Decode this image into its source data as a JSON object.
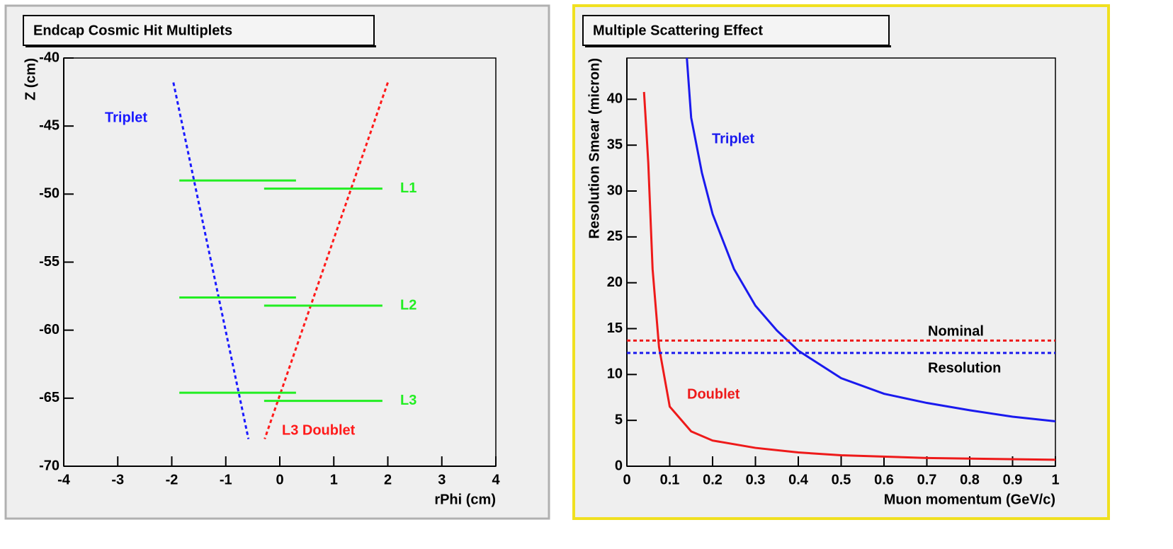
{
  "chart_data": [
    {
      "type": "line",
      "title": "Endcap Cosmic Hit Multiplets",
      "x_label": "rPhi (cm)",
      "y_label": "Z (cm)",
      "xlim": [
        -4,
        4
      ],
      "xticks": [
        -4,
        -3,
        -2,
        -1,
        0,
        1,
        2,
        3,
        4
      ],
      "ylim": [
        -70,
        -40
      ],
      "yticks": [
        -70,
        -65,
        -60,
        -55,
        -50,
        -45,
        -40
      ],
      "line_style": "dotted",
      "series": [
        {
          "name": "Triplet",
          "color": "#1a1aff",
          "x": [
            -1.97,
            -0.58
          ],
          "values": [
            -41.8,
            -68.0
          ]
        },
        {
          "name": "L3 Doublet",
          "color": "#ff1a1a",
          "x": [
            2.0,
            -0.28
          ],
          "values": [
            -41.8,
            -68.0
          ]
        }
      ],
      "layer_color": "#22ee22",
      "layers": [
        {
          "name": "L1",
          "segments": [
            {
              "x": [
                -1.86,
                0.3
              ],
              "values": [
                -49.0,
                -49.0
              ]
            },
            {
              "x": [
                -0.29,
                1.9
              ],
              "values": [
                -49.6,
                -49.6
              ]
            }
          ]
        },
        {
          "name": "L2",
          "segments": [
            {
              "x": [
                -1.86,
                0.3
              ],
              "values": [
                -57.6,
                -57.6
              ]
            },
            {
              "x": [
                -0.29,
                1.9
              ],
              "values": [
                -58.2,
                -58.2
              ]
            }
          ]
        },
        {
          "name": "L3",
          "segments": [
            {
              "x": [
                -1.86,
                0.3
              ],
              "values": [
                -64.6,
                -64.6
              ]
            },
            {
              "x": [
                -0.29,
                1.9
              ],
              "values": [
                -65.2,
                -65.2
              ]
            }
          ]
        }
      ]
    },
    {
      "type": "line",
      "title": "Multiple Scattering Effect",
      "x_label": "Muon momentum (GeV/c)",
      "y_label": "Resolution Smear (micron)",
      "xlim": [
        0,
        1
      ],
      "xticks": [
        0,
        0.1,
        0.2,
        0.3,
        0.4,
        0.5,
        0.6,
        0.7,
        0.8,
        0.9,
        1
      ],
      "ylim": [
        0,
        44.5
      ],
      "yticks": [
        0,
        5,
        10,
        15,
        20,
        25,
        30,
        35,
        40
      ],
      "line_style": "solid",
      "series": [
        {
          "name": "Triplet",
          "color": "#1a1aee",
          "x": [
            0.14,
            0.15,
            0.175,
            0.2,
            0.25,
            0.3,
            0.35,
            0.4,
            0.5,
            0.6,
            0.7,
            0.8,
            0.9,
            1.0
          ],
          "values": [
            44.5,
            38,
            32,
            27.5,
            21.5,
            17.5,
            14.8,
            12.6,
            9.6,
            7.9,
            6.9,
            6.1,
            5.4,
            4.9
          ]
        },
        {
          "name": "Doublet",
          "color": "#ee1a1a",
          "x": [
            0.04,
            0.045,
            0.05,
            0.06,
            0.075,
            0.1,
            0.15,
            0.2,
            0.3,
            0.4,
            0.5,
            0.7,
            1.0
          ],
          "values": [
            40.8,
            37,
            33,
            21.5,
            13,
            6.5,
            3.8,
            2.8,
            2.0,
            1.5,
            1.2,
            0.9,
            0.7
          ]
        }
      ],
      "reference_lines": [
        {
          "value": 13.7,
          "color": "#ee1a1a"
        },
        {
          "value": 12.35,
          "color": "#1a1aee"
        }
      ],
      "annotations": [
        "Nominal",
        "Resolution"
      ]
    }
  ]
}
